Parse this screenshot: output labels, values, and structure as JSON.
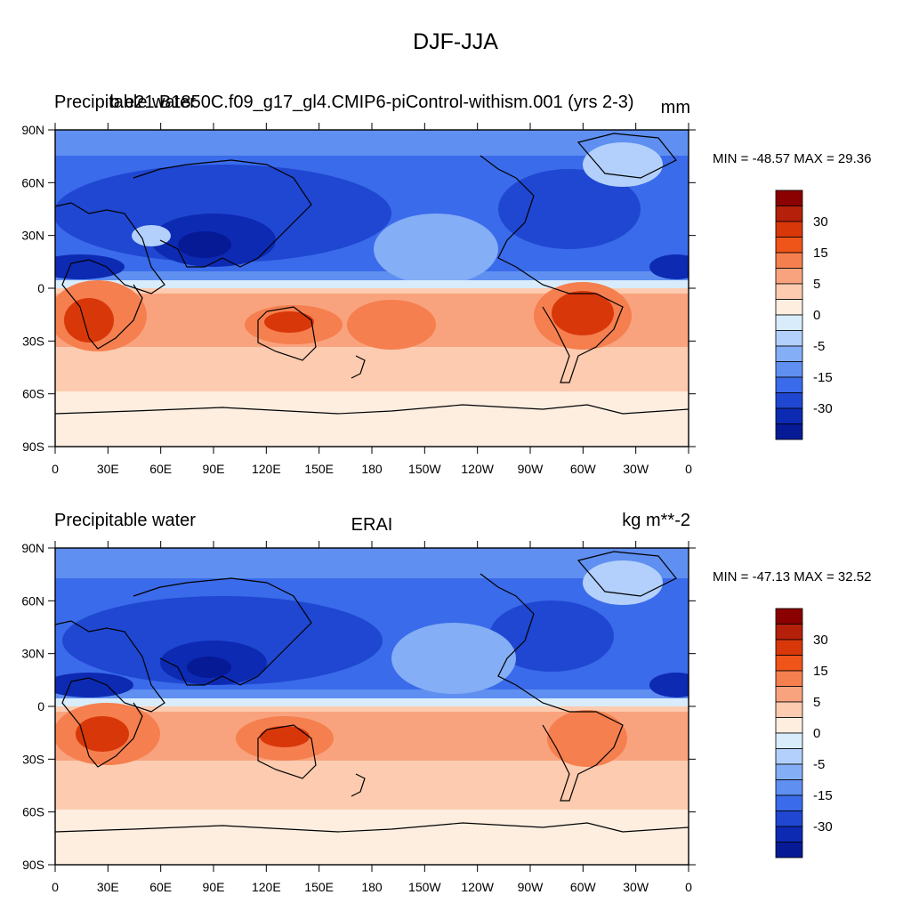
{
  "main_title": "DJF-JJA",
  "panels": [
    {
      "left_title": "Precipitable water",
      "center_title": "b.e21.B1850C.f09_g17_gl4.CMIP6-piControl-withism.001 (yrs 2-3)",
      "right_title": "mm",
      "min_max": "MIN = -48.57 MAX =  29.36"
    },
    {
      "left_title": "Precipitable water",
      "center_title": "ERAI",
      "right_title": "kg m**-2",
      "min_max": "MIN = -47.13 MAX =  32.52"
    }
  ],
  "lat_labels": [
    "90N",
    "60N",
    "30N",
    "0",
    "30S",
    "60S",
    "90S"
  ],
  "lon_labels": [
    "0",
    "30E",
    "60E",
    "90E",
    "120E",
    "150E",
    "180",
    "150W",
    "120W",
    "90W",
    "60W",
    "30W",
    "0"
  ],
  "colorbar": {
    "colors": [
      "#8b0000",
      "#b5200a",
      "#d8370a",
      "#ef5419",
      "#f57f4e",
      "#f9a37e",
      "#fccbb0",
      "#fdeee0",
      "#d8ecfc",
      "#b2d0fb",
      "#84aef5",
      "#5f8ff0",
      "#3a6bea",
      "#1f47d2",
      "#0d2ab3",
      "#061a96"
    ],
    "labels": [
      "30",
      "15",
      "5",
      "0",
      "-5",
      "-15",
      "-30"
    ]
  },
  "map_colors": {
    "ocean_neutral": "#fdeee0",
    "deep_blue": "#061a96",
    "mid_blue": "#3a6bea",
    "light_blue": "#b2d0fb",
    "light_red": "#fccbb0",
    "mid_red": "#f57f4e",
    "deep_red": "#d8370a"
  }
}
